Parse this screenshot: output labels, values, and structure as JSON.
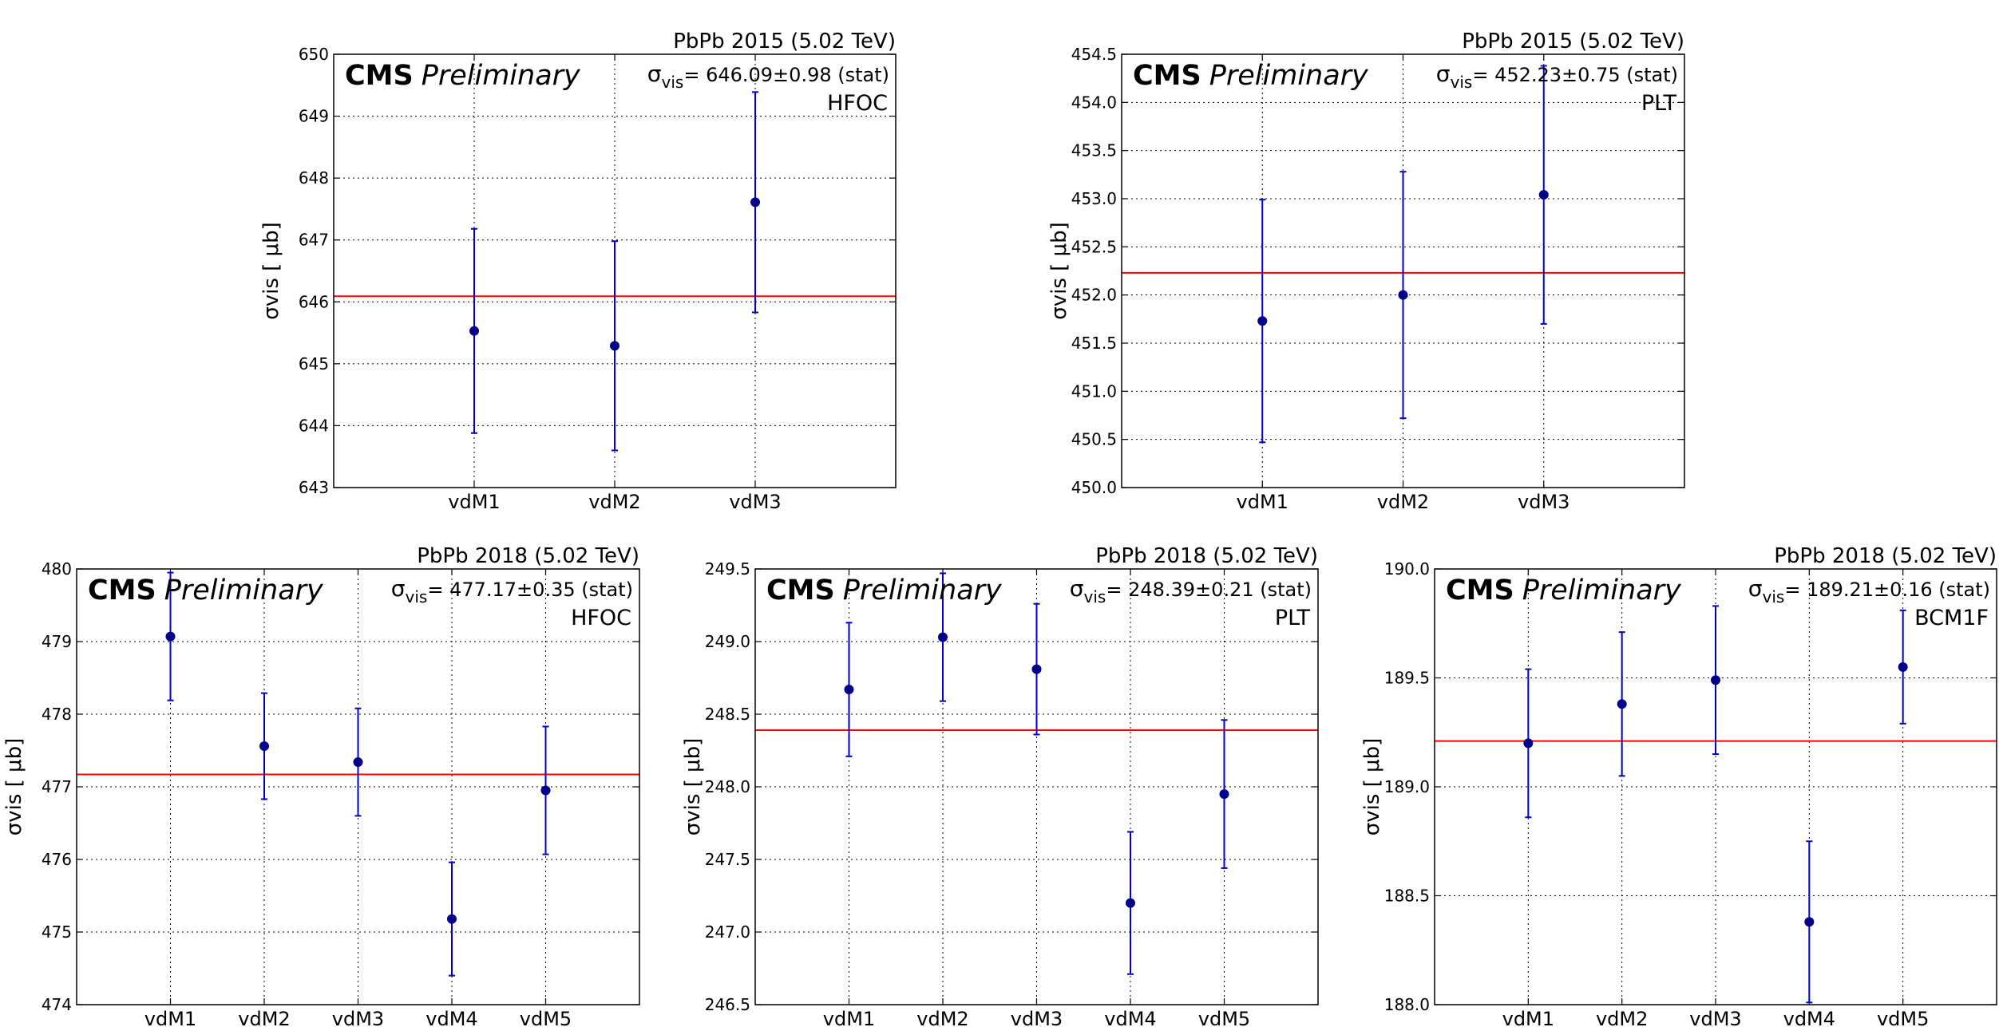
{
  "chart_data": [
    {
      "type": "scatter",
      "title": "PbPb 2015 (5.02 TeV)",
      "cms_label": "CMS",
      "preliminary_label": "Preliminary",
      "sigma_text": "= 646.09±0.98 (stat)",
      "detector": "HFOC",
      "ylabel": "σvis [ μb]",
      "categories": [
        "vdM1",
        "vdM2",
        "vdM3"
      ],
      "values": [
        645.53,
        645.29,
        647.61
      ],
      "errors": [
        1.65,
        1.69,
        1.78
      ],
      "mean": 646.09,
      "ylim": [
        643,
        650
      ],
      "yticks": [
        643,
        644,
        645,
        646,
        647,
        648,
        649,
        650
      ],
      "ytick_labels": [
        "643",
        "644",
        "645",
        "646",
        "647",
        "648",
        "649",
        "650"
      ],
      "grid": true,
      "colors": {
        "points": "#00008b",
        "errorbars": "#0000cd",
        "mean_line": "#ff0000"
      }
    },
    {
      "type": "scatter",
      "title": "PbPb 2015 (5.02 TeV)",
      "cms_label": "CMS",
      "preliminary_label": "Preliminary",
      "sigma_text": "= 452.23±0.75 (stat)",
      "detector": "PLT",
      "ylabel": "σvis [ μb]",
      "categories": [
        "vdM1",
        "vdM2",
        "vdM3"
      ],
      "values": [
        451.73,
        452.0,
        453.04
      ],
      "errors": [
        1.26,
        1.28,
        1.34
      ],
      "mean": 452.23,
      "ylim": [
        450.0,
        454.5
      ],
      "yticks": [
        450.0,
        450.5,
        451.0,
        451.5,
        452.0,
        452.5,
        453.0,
        453.5,
        454.0,
        454.5
      ],
      "ytick_labels": [
        "450.0",
        "450.5",
        "451.0",
        "451.5",
        "452.0",
        "452.5",
        "453.0",
        "453.5",
        "454.0",
        "454.5"
      ],
      "grid": true,
      "colors": {
        "points": "#00008b",
        "errorbars": "#0000cd",
        "mean_line": "#ff0000"
      }
    },
    {
      "type": "scatter",
      "title": "PbPb 2018 (5.02 TeV)",
      "cms_label": "CMS",
      "preliminary_label": "Preliminary",
      "sigma_text": "= 477.17±0.35 (stat)",
      "detector": "HFOC",
      "ylabel": "σvis [ μb]",
      "categories": [
        "vdM1",
        "vdM2",
        "vdM3",
        "vdM4",
        "vdM5"
      ],
      "values": [
        479.07,
        477.56,
        477.34,
        475.18,
        476.95
      ],
      "errors": [
        0.88,
        0.73,
        0.74,
        0.78,
        0.88
      ],
      "mean": 477.17,
      "ylim": [
        474,
        480
      ],
      "yticks": [
        474,
        475,
        476,
        477,
        478,
        479,
        480
      ],
      "ytick_labels": [
        "474",
        "475",
        "476",
        "477",
        "478",
        "479",
        "480"
      ],
      "grid": true,
      "colors": {
        "points": "#00008b",
        "errorbars": "#0000cd",
        "mean_line": "#ff0000"
      }
    },
    {
      "type": "scatter",
      "title": "PbPb 2018 (5.02 TeV)",
      "cms_label": "CMS",
      "preliminary_label": "Preliminary",
      "sigma_text": "= 248.39±0.21 (stat)",
      "detector": "PLT",
      "ylabel": "σvis [ μb]",
      "categories": [
        "vdM1",
        "vdM2",
        "vdM3",
        "vdM4",
        "vdM5"
      ],
      "values": [
        248.67,
        249.03,
        248.81,
        247.2,
        247.95
      ],
      "errors": [
        0.46,
        0.44,
        0.45,
        0.49,
        0.51
      ],
      "mean": 248.39,
      "ylim": [
        246.5,
        249.5
      ],
      "yticks": [
        246.5,
        247.0,
        247.5,
        248.0,
        248.5,
        249.0,
        249.5
      ],
      "ytick_labels": [
        "246.5",
        "247.0",
        "247.5",
        "248.0",
        "248.5",
        "249.0",
        "249.5"
      ],
      "grid": true,
      "colors": {
        "points": "#00008b",
        "errorbars": "#0000cd",
        "mean_line": "#ff0000"
      }
    },
    {
      "type": "scatter",
      "title": "PbPb 2018 (5.02 TeV)",
      "cms_label": "CMS",
      "preliminary_label": "Preliminary",
      "sigma_text": "= 189.21±0.16 (stat)",
      "detector": "BCM1F",
      "ylabel": "σvis [ μb]",
      "categories": [
        "vdM1",
        "vdM2",
        "vdM3",
        "vdM4",
        "vdM5"
      ],
      "values": [
        189.2,
        189.38,
        189.49,
        188.38,
        189.55
      ],
      "errors": [
        0.34,
        0.33,
        0.34,
        0.37,
        0.26
      ],
      "mean": 189.21,
      "ylim": [
        188.0,
        190.0
      ],
      "yticks": [
        188.0,
        188.5,
        189.0,
        189.5,
        190.0
      ],
      "ytick_labels": [
        "188.0",
        "188.5",
        "189.0",
        "189.5",
        "190.0"
      ],
      "grid": true,
      "colors": {
        "points": "#00008b",
        "errorbars": "#0000cd",
        "mean_line": "#ff0000"
      }
    }
  ]
}
